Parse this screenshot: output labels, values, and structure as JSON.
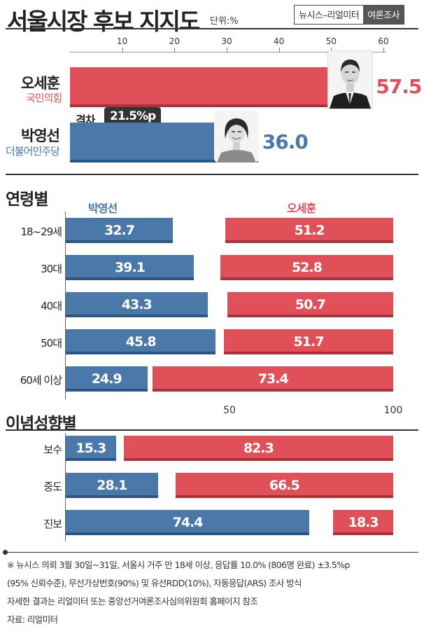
{
  "header": {
    "title": "서울시장 후보 지지도",
    "unit": "단위:%",
    "credit_left": "뉴시스–리얼미터",
    "credit_right": "여론조사"
  },
  "colors": {
    "blue": "#4a78a8",
    "red": "#e05059"
  },
  "chart_data": [
    {
      "type": "bar",
      "axis_ticks": [
        "10",
        "20",
        "30",
        "40",
        "50",
        "60"
      ],
      "xlim": [
        0,
        60
      ],
      "categories": [
        "오세훈",
        "박영선"
      ],
      "parties": [
        "국민의힘",
        "더불어민주당"
      ],
      "values": [
        57.5,
        36.0
      ],
      "value_labels": [
        "57.5",
        "36.0"
      ],
      "gap_label": "격차",
      "gap_value": "21.5%p"
    },
    {
      "type": "bar",
      "title": "연령별",
      "legend": [
        "박영선",
        "오세훈"
      ],
      "axis_ticks": [
        "50",
        "100"
      ],
      "xlim": [
        0,
        100
      ],
      "categories": [
        "18~29세",
        "30대",
        "40대",
        "50대",
        "60세 이상"
      ],
      "series": [
        {
          "name": "박영선",
          "values": [
            32.7,
            39.1,
            43.3,
            45.8,
            24.9
          ],
          "labels": [
            "32.7",
            "39.1",
            "43.3",
            "45.8",
            "24.9"
          ]
        },
        {
          "name": "오세훈",
          "values": [
            51.2,
            52.8,
            50.7,
            51.7,
            73.4
          ],
          "labels": [
            "51.2",
            "52.8",
            "50.7",
            "51.7",
            "73.4"
          ]
        }
      ]
    },
    {
      "type": "bar",
      "title": "이념성향별",
      "xlim": [
        0,
        100
      ],
      "categories": [
        "보수",
        "중도",
        "진보"
      ],
      "series": [
        {
          "name": "박영선",
          "values": [
            15.3,
            28.1,
            74.4
          ],
          "labels": [
            "15.3",
            "28.1",
            "74.4"
          ]
        },
        {
          "name": "오세훈",
          "values": [
            82.3,
            66.5,
            18.3
          ],
          "labels": [
            "82.3",
            "66.5",
            "18.3"
          ]
        }
      ]
    }
  ],
  "notes": [
    "※ 뉴시스 의뢰 3월 30일~31일, 서울시 거주 만 18세 이상, 응답률 10.0% (806명 완료) ±3.5%p",
    "(95% 신뢰수준), 무선가상번호(90%) 및 유선RDD(10%), 자동응답(ARS) 조사 방식",
    "자세한 결과는 리얼미터 또는 중앙선거여론조사심의위원회 홈페이지 참조",
    "자료: 리얼미터"
  ]
}
